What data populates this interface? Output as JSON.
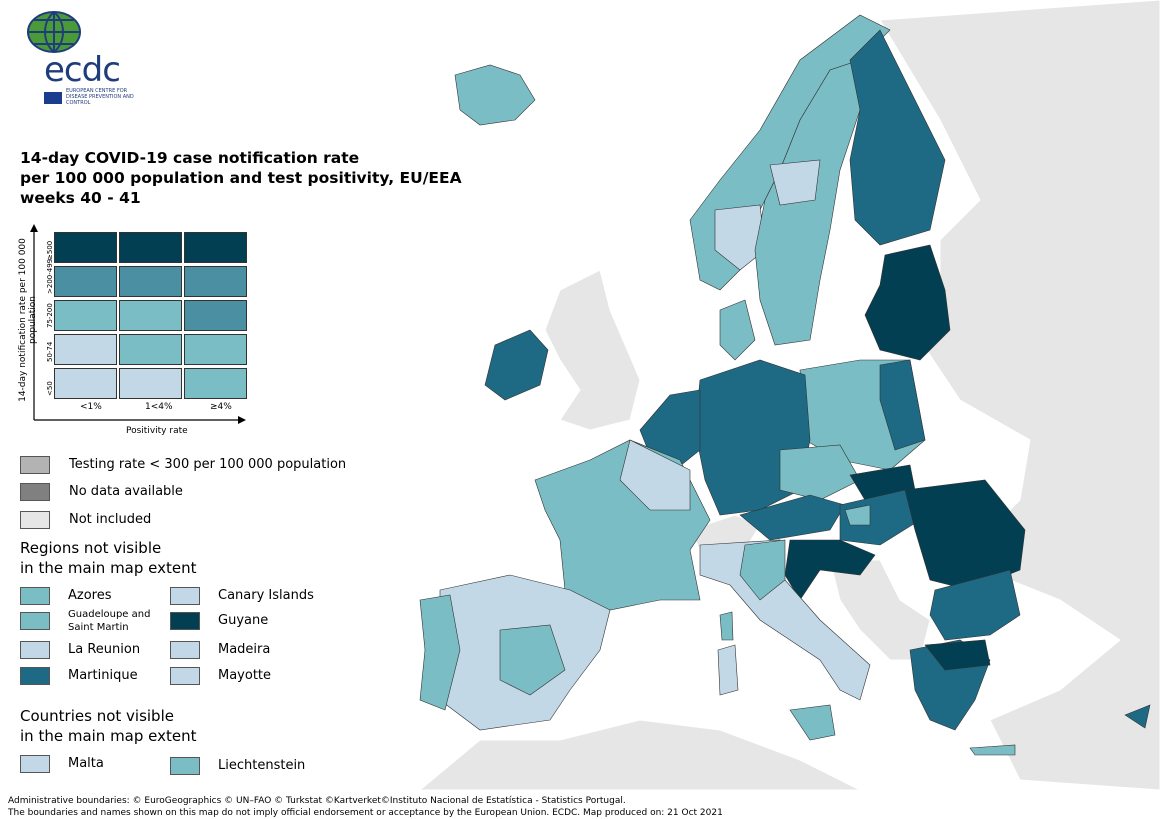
{
  "title": [
    "14-day COVID-19 case notification rate",
    "per 100 000 population and test positivity, EU/EEA",
    "weeks 40 - 41"
  ],
  "logo": {
    "text": "ecdc",
    "subtitle": "EUROPEAN CENTRE FOR DISEASE PREVENTION AND CONTROL"
  },
  "matrix": {
    "ylabel": "14-day notification rate per 100 000 population",
    "xlabel": "Positivity rate",
    "rows": [
      "≥500",
      ">200-499",
      "75-200",
      "50-74",
      "<50"
    ],
    "cols": [
      "<1%",
      "1<4%",
      "≥4%"
    ],
    "colors": [
      [
        "#023f52",
        "#023f52",
        "#023f52"
      ],
      [
        "#4b8fa3",
        "#4b8fa3",
        "#4b8fa3"
      ],
      [
        "#7abdc4",
        "#7abdc4",
        "#4b8fa3"
      ],
      [
        "#c3d8e7",
        "#7abdc4",
        "#7abdc4"
      ],
      [
        "#c3d8e7",
        "#c3d8e7",
        "#7abdc4"
      ]
    ]
  },
  "legend": {
    "testing": {
      "label": "Testing rate < 300 per 100 000 population",
      "color": "#b3b3b3"
    },
    "nodata": {
      "label": "No data available",
      "color": "#808080"
    },
    "notincluded": {
      "label": "Not included",
      "color": "#e6e6e6"
    },
    "regions_header": [
      "Regions not visible",
      "in the main map extent"
    ],
    "regions": [
      {
        "label": "Azores",
        "color": "#7abdc4"
      },
      {
        "label": "Guadeloupe and Saint Martin",
        "color": "#7abdc4"
      },
      {
        "label": "La Reunion",
        "color": "#c3d8e7"
      },
      {
        "label": "Martinique",
        "color": "#1e6a85"
      },
      {
        "label": "Canary Islands",
        "color": "#c3d8e7"
      },
      {
        "label": "Guyane",
        "color": "#023f52"
      },
      {
        "label": "Madeira",
        "color": "#c3d8e7"
      },
      {
        "label": "Mayotte",
        "color": "#c3d8e7"
      }
    ],
    "countries_header": [
      "Countries not visible",
      "in the main map extent"
    ],
    "countries": [
      {
        "label": "Malta",
        "color": "#c3d8e7"
      },
      {
        "label": "Liechtenstein",
        "color": "#7abdc4"
      }
    ]
  },
  "footer": [
    "Administrative boundaries: © EuroGeographics © UN–FAO © Turkstat ©Kartverket©Instituto Nacional de Estatística - Statistics Portugal.",
    "The boundaries and names shown on this map do not imply official endorsement or acceptance by the European Union. ECDC. Map produced on: 21 Oct 2021"
  ],
  "colors": {
    "dark": "#023f52",
    "mid_dark": "#1e6a85",
    "mid": "#7abdc4",
    "light": "#c3d8e7",
    "grey": "#e6e6e6"
  }
}
